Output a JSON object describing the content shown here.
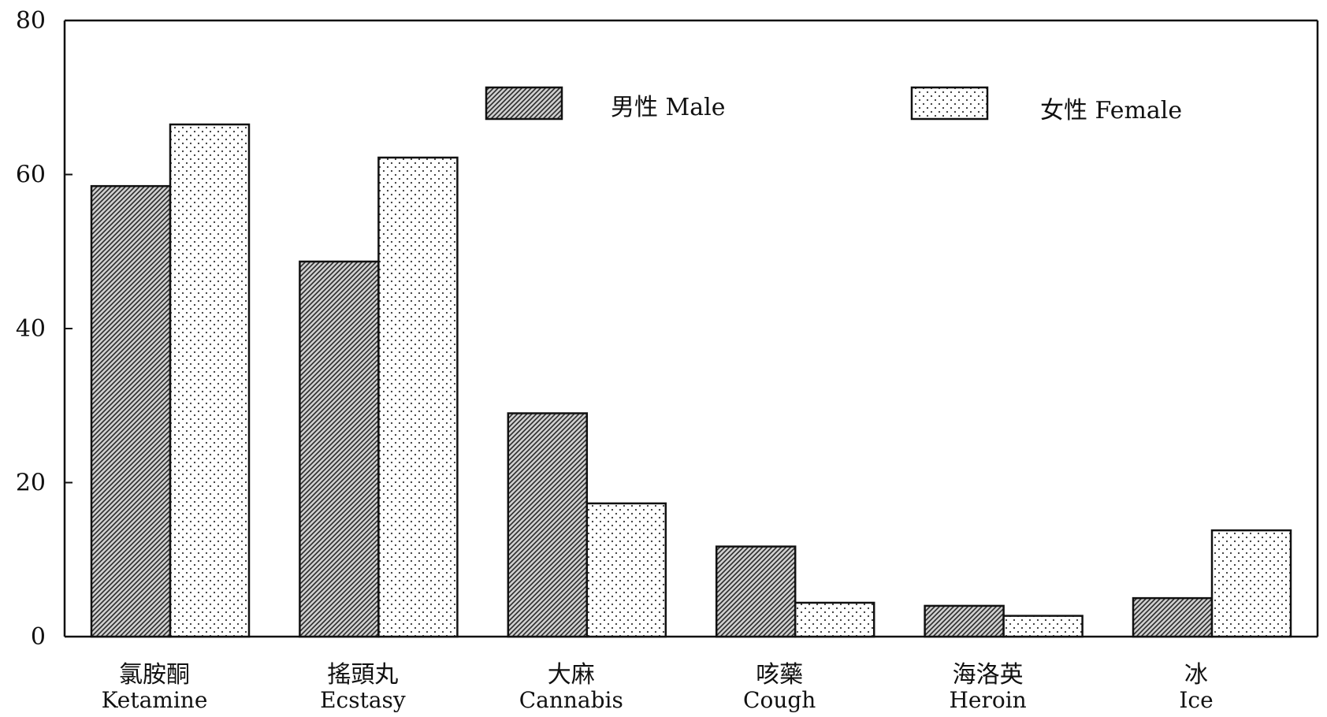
{
  "chart_data": {
    "type": "bar",
    "title": "",
    "xlabel": "",
    "ylabel": "",
    "ylim": [
      0,
      80
    ],
    "yticks": [
      0,
      20,
      40,
      60,
      80
    ],
    "grid": false,
    "legend_position": "top-right",
    "categories": [
      {
        "zh": "氯胺酮",
        "en": "Ketamine"
      },
      {
        "zh": "搖頭丸",
        "en": "Ecstasy"
      },
      {
        "zh": "大麻",
        "en": "Cannabis"
      },
      {
        "zh": "咳藥",
        "en": "Cough"
      },
      {
        "zh": "海洛英",
        "en": "Heroin"
      },
      {
        "zh": "冰",
        "en": "Ice"
      }
    ],
    "series": [
      {
        "name": "男性 Male",
        "pattern": "hatch",
        "values": [
          58.5,
          48.7,
          29.0,
          11.7,
          4.0,
          5.0
        ]
      },
      {
        "name": "女性 Female",
        "pattern": "dots",
        "values": [
          66.5,
          62.2,
          17.3,
          4.4,
          2.7,
          13.8
        ]
      }
    ]
  }
}
